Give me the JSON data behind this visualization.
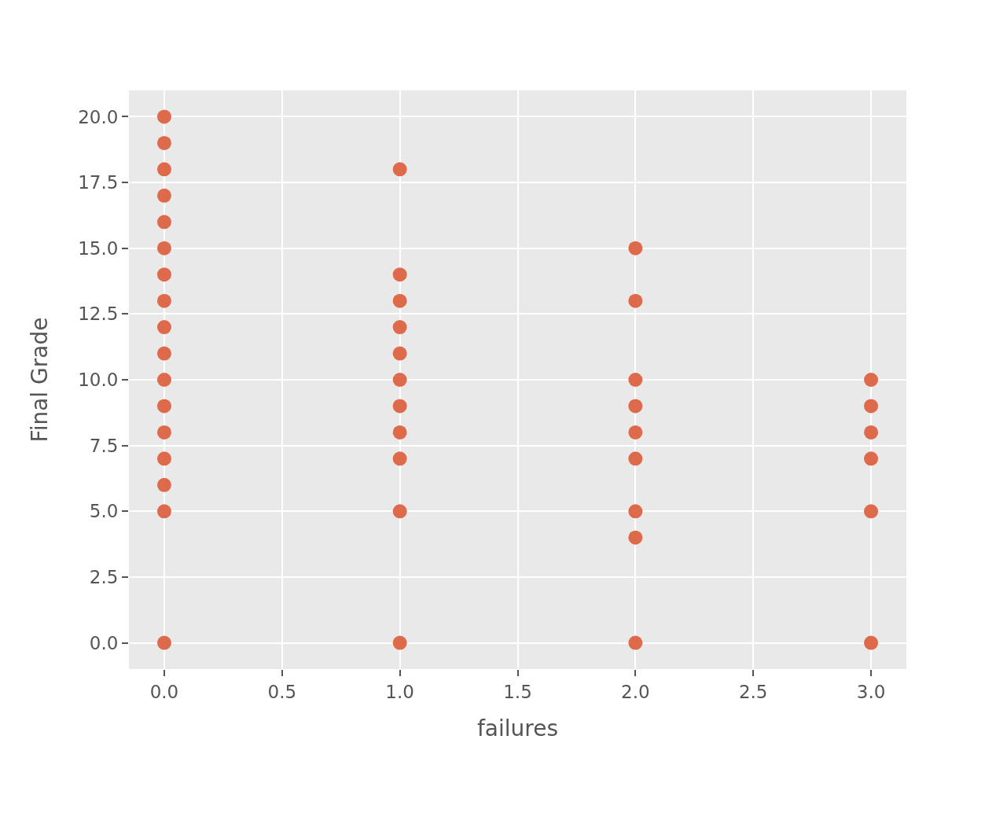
{
  "chart_data": {
    "type": "scatter",
    "xlabel": "failures",
    "ylabel": "Final Grade",
    "x": [
      0,
      0,
      0,
      0,
      0,
      0,
      0,
      0,
      0,
      0,
      0,
      0,
      0,
      0,
      0,
      0,
      0,
      1,
      1,
      1,
      1,
      1,
      1,
      1,
      1,
      1,
      1,
      1,
      2,
      2,
      2,
      2,
      2,
      2,
      2,
      2,
      2,
      3,
      3,
      3,
      3,
      3,
      3
    ],
    "series": [
      {
        "color": "#dd6a4b",
        "values": [
          20,
          19,
          18,
          17,
          16,
          15,
          14,
          13,
          12,
          11,
          10,
          9,
          8,
          7,
          6,
          5,
          0,
          18,
          14,
          13,
          12,
          11,
          10,
          9,
          8,
          7,
          5,
          0,
          15,
          13,
          10,
          9,
          8,
          7,
          5,
          4,
          0,
          10,
          9,
          8,
          7,
          5,
          0
        ]
      }
    ],
    "xlim": [
      -0.15,
      3.15
    ],
    "ylim": [
      -1,
      21
    ],
    "xticks": [
      {
        "value": 0,
        "label": "0.0"
      },
      0.5,
      {
        "value": 1,
        "label": "1.0"
      },
      1.5,
      {
        "value": 2,
        "label": "2.0"
      },
      2.5,
      {
        "value": 3,
        "label": "3.0"
      }
    ],
    "yticks": [
      {
        "value": 0,
        "label": "0.0"
      },
      2.5,
      {
        "value": 5,
        "label": "5.0"
      },
      7.5,
      {
        "value": 10,
        "label": "10.0"
      },
      12.5,
      {
        "value": 15,
        "label": "15.0"
      },
      17.5,
      {
        "value": 20,
        "label": "20.0"
      }
    ],
    "grid": true,
    "marker": "circle"
  }
}
